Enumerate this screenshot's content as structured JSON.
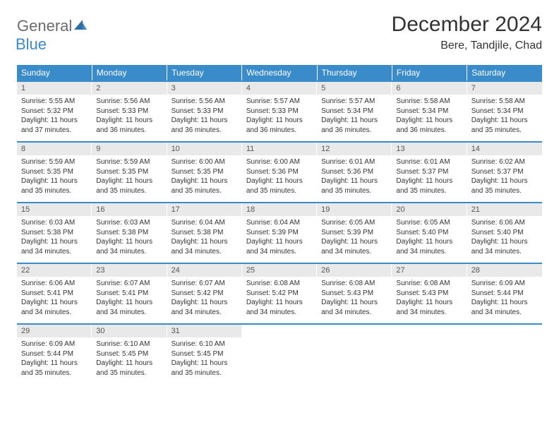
{
  "logo": {
    "general": "General",
    "blue": "Blue"
  },
  "title": "December 2024",
  "location": "Bere, Tandjile, Chad",
  "colors": {
    "header_bg": "#3a8bc9",
    "daynum_bg": "#e9e9e9",
    "row_border": "#3a8bc9",
    "logo_gray": "#6b6b6b",
    "logo_blue": "#3a8bc9"
  },
  "weekdays": [
    "Sunday",
    "Monday",
    "Tuesday",
    "Wednesday",
    "Thursday",
    "Friday",
    "Saturday"
  ],
  "weeks": [
    [
      {
        "n": "1",
        "sr": "Sunrise: 5:55 AM",
        "ss": "Sunset: 5:32 PM",
        "dl": "Daylight: 11 hours and 37 minutes."
      },
      {
        "n": "2",
        "sr": "Sunrise: 5:56 AM",
        "ss": "Sunset: 5:33 PM",
        "dl": "Daylight: 11 hours and 36 minutes."
      },
      {
        "n": "3",
        "sr": "Sunrise: 5:56 AM",
        "ss": "Sunset: 5:33 PM",
        "dl": "Daylight: 11 hours and 36 minutes."
      },
      {
        "n": "4",
        "sr": "Sunrise: 5:57 AM",
        "ss": "Sunset: 5:33 PM",
        "dl": "Daylight: 11 hours and 36 minutes."
      },
      {
        "n": "5",
        "sr": "Sunrise: 5:57 AM",
        "ss": "Sunset: 5:34 PM",
        "dl": "Daylight: 11 hours and 36 minutes."
      },
      {
        "n": "6",
        "sr": "Sunrise: 5:58 AM",
        "ss": "Sunset: 5:34 PM",
        "dl": "Daylight: 11 hours and 36 minutes."
      },
      {
        "n": "7",
        "sr": "Sunrise: 5:58 AM",
        "ss": "Sunset: 5:34 PM",
        "dl": "Daylight: 11 hours and 35 minutes."
      }
    ],
    [
      {
        "n": "8",
        "sr": "Sunrise: 5:59 AM",
        "ss": "Sunset: 5:35 PM",
        "dl": "Daylight: 11 hours and 35 minutes."
      },
      {
        "n": "9",
        "sr": "Sunrise: 5:59 AM",
        "ss": "Sunset: 5:35 PM",
        "dl": "Daylight: 11 hours and 35 minutes."
      },
      {
        "n": "10",
        "sr": "Sunrise: 6:00 AM",
        "ss": "Sunset: 5:35 PM",
        "dl": "Daylight: 11 hours and 35 minutes."
      },
      {
        "n": "11",
        "sr": "Sunrise: 6:00 AM",
        "ss": "Sunset: 5:36 PM",
        "dl": "Daylight: 11 hours and 35 minutes."
      },
      {
        "n": "12",
        "sr": "Sunrise: 6:01 AM",
        "ss": "Sunset: 5:36 PM",
        "dl": "Daylight: 11 hours and 35 minutes."
      },
      {
        "n": "13",
        "sr": "Sunrise: 6:01 AM",
        "ss": "Sunset: 5:37 PM",
        "dl": "Daylight: 11 hours and 35 minutes."
      },
      {
        "n": "14",
        "sr": "Sunrise: 6:02 AM",
        "ss": "Sunset: 5:37 PM",
        "dl": "Daylight: 11 hours and 35 minutes."
      }
    ],
    [
      {
        "n": "15",
        "sr": "Sunrise: 6:03 AM",
        "ss": "Sunset: 5:38 PM",
        "dl": "Daylight: 11 hours and 34 minutes."
      },
      {
        "n": "16",
        "sr": "Sunrise: 6:03 AM",
        "ss": "Sunset: 5:38 PM",
        "dl": "Daylight: 11 hours and 34 minutes."
      },
      {
        "n": "17",
        "sr": "Sunrise: 6:04 AM",
        "ss": "Sunset: 5:38 PM",
        "dl": "Daylight: 11 hours and 34 minutes."
      },
      {
        "n": "18",
        "sr": "Sunrise: 6:04 AM",
        "ss": "Sunset: 5:39 PM",
        "dl": "Daylight: 11 hours and 34 minutes."
      },
      {
        "n": "19",
        "sr": "Sunrise: 6:05 AM",
        "ss": "Sunset: 5:39 PM",
        "dl": "Daylight: 11 hours and 34 minutes."
      },
      {
        "n": "20",
        "sr": "Sunrise: 6:05 AM",
        "ss": "Sunset: 5:40 PM",
        "dl": "Daylight: 11 hours and 34 minutes."
      },
      {
        "n": "21",
        "sr": "Sunrise: 6:06 AM",
        "ss": "Sunset: 5:40 PM",
        "dl": "Daylight: 11 hours and 34 minutes."
      }
    ],
    [
      {
        "n": "22",
        "sr": "Sunrise: 6:06 AM",
        "ss": "Sunset: 5:41 PM",
        "dl": "Daylight: 11 hours and 34 minutes."
      },
      {
        "n": "23",
        "sr": "Sunrise: 6:07 AM",
        "ss": "Sunset: 5:41 PM",
        "dl": "Daylight: 11 hours and 34 minutes."
      },
      {
        "n": "24",
        "sr": "Sunrise: 6:07 AM",
        "ss": "Sunset: 5:42 PM",
        "dl": "Daylight: 11 hours and 34 minutes."
      },
      {
        "n": "25",
        "sr": "Sunrise: 6:08 AM",
        "ss": "Sunset: 5:42 PM",
        "dl": "Daylight: 11 hours and 34 minutes."
      },
      {
        "n": "26",
        "sr": "Sunrise: 6:08 AM",
        "ss": "Sunset: 5:43 PM",
        "dl": "Daylight: 11 hours and 34 minutes."
      },
      {
        "n": "27",
        "sr": "Sunrise: 6:08 AM",
        "ss": "Sunset: 5:43 PM",
        "dl": "Daylight: 11 hours and 34 minutes."
      },
      {
        "n": "28",
        "sr": "Sunrise: 6:09 AM",
        "ss": "Sunset: 5:44 PM",
        "dl": "Daylight: 11 hours and 34 minutes."
      }
    ],
    [
      {
        "n": "29",
        "sr": "Sunrise: 6:09 AM",
        "ss": "Sunset: 5:44 PM",
        "dl": "Daylight: 11 hours and 35 minutes."
      },
      {
        "n": "30",
        "sr": "Sunrise: 6:10 AM",
        "ss": "Sunset: 5:45 PM",
        "dl": "Daylight: 11 hours and 35 minutes."
      },
      {
        "n": "31",
        "sr": "Sunrise: 6:10 AM",
        "ss": "Sunset: 5:45 PM",
        "dl": "Daylight: 11 hours and 35 minutes."
      },
      {
        "n": "",
        "sr": "",
        "ss": "",
        "dl": ""
      },
      {
        "n": "",
        "sr": "",
        "ss": "",
        "dl": ""
      },
      {
        "n": "",
        "sr": "",
        "ss": "",
        "dl": ""
      },
      {
        "n": "",
        "sr": "",
        "ss": "",
        "dl": ""
      }
    ]
  ]
}
